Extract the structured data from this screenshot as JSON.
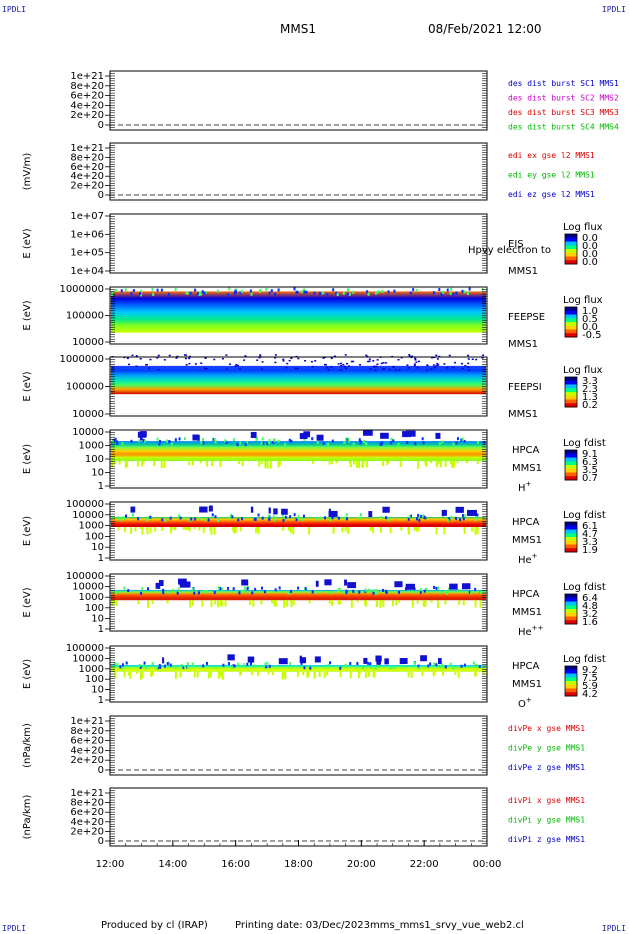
{
  "corners": {
    "tl": "IPDLI",
    "tr": "IPDLI",
    "bl": "IPDLI",
    "br": "IPDLI"
  },
  "header": {
    "mission": "MMS1",
    "datetime": "08/Feb/2021 12:00"
  },
  "footer": {
    "producer": "Produced by cl (IRAP)",
    "printing": "Printing date: 03/Dec/2023",
    "file": "mms_mms1_srvy_vue_web2.cl"
  },
  "colors": {
    "spacecraft": [
      "#0000c8",
      "#cc00cc",
      "#dd0000",
      "#00bb00"
    ],
    "components": [
      "#dd0000",
      "#00bb00",
      "#0000c8"
    ],
    "colorbar": [
      "#000080",
      "#0000ff",
      "#00c0ff",
      "#00ff80",
      "#c0ff00",
      "#ffd000",
      "#ff6000",
      "#e00000"
    ]
  },
  "chart_data": [
    {
      "type": "line",
      "id": "fpi_des",
      "ylabel": "",
      "yticks": [
        "1e+21",
        "8e+20",
        "6e+20",
        "4e+20",
        "2e+20",
        "0"
      ],
      "ylim": [
        0,
        1e+21
      ],
      "dashed_zero": true,
      "legend": [
        "des dist burst SC1 MMS1",
        "des dist burst SC2 MMS2",
        "des dist burst SC3 MMS3",
        "des dist burst SC4 MMS4"
      ],
      "series": []
    },
    {
      "type": "line",
      "id": "edi",
      "ylabel": "(mV/m)",
      "yticks": [
        "1e+21",
        "8e+20",
        "6e+20",
        "4e+20",
        "2e+20",
        "0"
      ],
      "ylim": [
        0,
        1e+21
      ],
      "dashed_zero": true,
      "legend": [
        "edi ex gse l2 MMS1",
        "edi ey gse l2 MMS1",
        "edi ez gse l2 MMS1"
      ],
      "series": []
    },
    {
      "type": "heatmap",
      "id": "eis",
      "ylabel": "E (eV)",
      "scale": "log",
      "yticks": [
        "1e+07",
        "1e+06",
        "1e+05",
        "1e+04"
      ],
      "ylim": [
        10000,
        10000000
      ],
      "instrument": "EIS",
      "probe": "MMS1",
      "colorbar_label": "Log flux",
      "colorbar_ticks": [
        "0.0",
        "0.0",
        "0.0",
        "0.0"
      ],
      "annotation": "Hpvy electron to",
      "content": "empty"
    },
    {
      "type": "heatmap",
      "id": "feepse",
      "ylabel": "E (eV)",
      "scale": "log",
      "yticks": [
        "1000000",
        "100000",
        "10000"
      ],
      "ylim": [
        10000,
        1000000
      ],
      "instrument": "FEEPSE",
      "probe": "MMS1",
      "colorbar_label": "Log flux",
      "colorbar_ticks": [
        "1.0",
        "0.5",
        "0.0",
        "-0.5"
      ],
      "band_e_ev": [
        25000,
        700000
      ],
      "content": "continuous band"
    },
    {
      "type": "heatmap",
      "id": "feepsi",
      "ylabel": "E (eV)",
      "scale": "log",
      "yticks": [
        "1000000",
        "100000",
        "10000"
      ],
      "ylim": [
        10000,
        1000000
      ],
      "instrument": "FEEPSI",
      "probe": "MMS1",
      "colorbar_label": "Log flux",
      "colorbar_ticks": [
        "3.3",
        "2.3",
        "1.3",
        "0.2"
      ],
      "band_e_ev": [
        55000,
        500000
      ],
      "content": "red bottom edge, sparse speckle"
    },
    {
      "type": "heatmap",
      "id": "hpca_h",
      "ylabel": "E (eV)",
      "scale": "log",
      "yticks": [
        "10000",
        "1000",
        "100",
        "10",
        "1"
      ],
      "ylim": [
        1,
        20000
      ],
      "instrument": "HPCA",
      "probe": "MMS1",
      "species": "H",
      "species_sup": "+",
      "colorbar_label": "Log fdist",
      "colorbar_ticks": [
        "9.1",
        "6.3",
        "3.5",
        "0.7"
      ],
      "band_e_ev": [
        100,
        3000
      ]
    },
    {
      "type": "heatmap",
      "id": "hpca_he1",
      "ylabel": "E (eV)",
      "scale": "log",
      "yticks": [
        "100000",
        "10000",
        "1000",
        "100",
        "10",
        "1"
      ],
      "ylim": [
        1,
        100000
      ],
      "instrument": "HPCA",
      "probe": "MMS1",
      "species": "He",
      "species_sup": "+",
      "colorbar_label": "Log fdist",
      "colorbar_ticks": [
        "6.1",
        "4.7",
        "3.3",
        "1.9"
      ],
      "band_e_ev": [
        700,
        5000
      ]
    },
    {
      "type": "heatmap",
      "id": "hpca_he2",
      "ylabel": "E (eV)",
      "scale": "log",
      "yticks": [
        "100000",
        "10000",
        "1000",
        "100",
        "10",
        "1"
      ],
      "ylim": [
        1,
        100000
      ],
      "instrument": "HPCA",
      "probe": "MMS1",
      "species": "He",
      "species_sup": "++",
      "colorbar_label": "Log fdist",
      "colorbar_ticks": [
        "6.4",
        "4.8",
        "3.2",
        "1.6"
      ],
      "band_e_ev": [
        500,
        4000
      ]
    },
    {
      "type": "heatmap",
      "id": "hpca_o",
      "ylabel": "E (eV)",
      "scale": "log",
      "yticks": [
        "100000",
        "10000",
        "1000",
        "100",
        "10",
        "1"
      ],
      "ylim": [
        1,
        100000
      ],
      "instrument": "HPCA",
      "probe": "MMS1",
      "species": "O",
      "species_sup": "+",
      "colorbar_label": "Log fdist",
      "colorbar_ticks": [
        "9.2",
        "7.5",
        "5.9",
        "4.2"
      ],
      "band_e_ev": [
        500,
        2000
      ]
    },
    {
      "type": "line",
      "id": "divpe",
      "ylabel": "(nPa/km)",
      "yticks": [
        "1e+21",
        "8e+20",
        "6e+20",
        "4e+20",
        "2e+20",
        "0"
      ],
      "ylim": [
        0,
        1e+21
      ],
      "dashed_zero": true,
      "legend": [
        "divPe x gse MMS1",
        "divPe y gse MMS1",
        "divPe z gse MMS1"
      ],
      "series": []
    },
    {
      "type": "line",
      "id": "divpi",
      "ylabel": "(nPa/km)",
      "yticks": [
        "1e+21",
        "8e+20",
        "6e+20",
        "4e+20",
        "2e+20",
        "0"
      ],
      "ylim": [
        0,
        1e+21
      ],
      "dashed_zero": true,
      "legend": [
        "divPi x gse MMS1",
        "divPi y gse MMS1",
        "divPi z gse MMS1"
      ],
      "series": []
    }
  ],
  "time_axis": {
    "ticks": [
      "12:00",
      "14:00",
      "16:00",
      "18:00",
      "20:00",
      "22:00",
      "00:00"
    ]
  }
}
